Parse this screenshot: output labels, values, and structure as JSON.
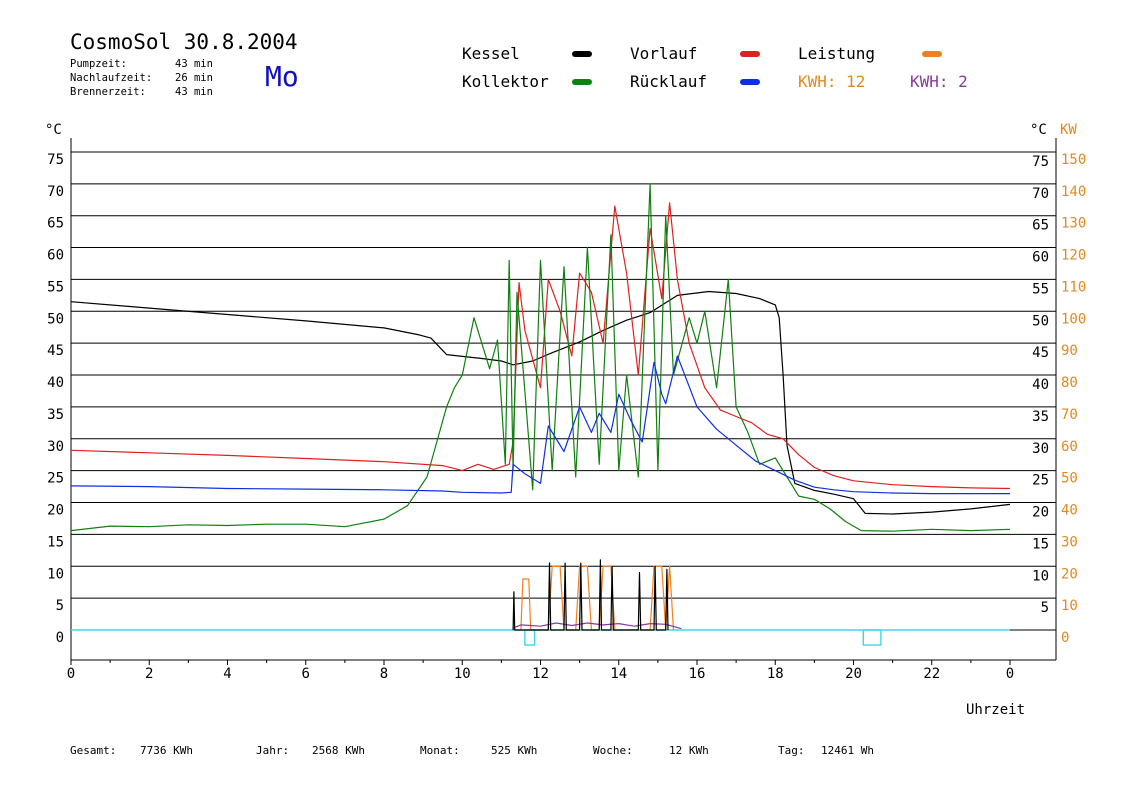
{
  "header": {
    "title": "CosmoSol 30.8.2004",
    "day": "Mo",
    "day_color": "#1010c0",
    "info": [
      {
        "label": "Pumpzeit:",
        "value": "43 min"
      },
      {
        "label": "Nachlaufzeit:",
        "value": "26 min"
      },
      {
        "label": "Brennerzeit:",
        "value": "43 min"
      }
    ]
  },
  "legend": {
    "kessel": {
      "label": "Kessel",
      "color": "#000000"
    },
    "vorlauf": {
      "label": "Vorlauf",
      "color": "#e02020"
    },
    "leistung": {
      "label": "Leistung",
      "color": "#f08020"
    },
    "kollektor": {
      "label": "Kollektor",
      "color": "#108010"
    },
    "ruecklauf": {
      "label": "Rücklauf",
      "color": "#1030e0"
    },
    "kwh_orange": {
      "label": "KWH: 12",
      "color": "#e08a20"
    },
    "kwh_purple": {
      "label": "KWH: 2",
      "color": "#8a3a9a"
    }
  },
  "axes": {
    "left_unit": "°C",
    "right_unit": "°C",
    "right_unit2": "KW",
    "x_label": "Uhrzeit"
  },
  "footer": {
    "gesamt_label": "Gesamt:",
    "gesamt_value": "7736 KWh",
    "jahr_label": "Jahr:",
    "jahr_value": "2568 KWh",
    "monat_label": "Monat:",
    "monat_value": "525 KWh",
    "woche_label": "Woche:",
    "woche_value": "12 KWh",
    "tag_label": "Tag:",
    "tag_value": "12461 Wh"
  },
  "chart_data": {
    "type": "line",
    "x_ticks": [
      "0",
      "2",
      "4",
      "6",
      "8",
      "10",
      "12",
      "14",
      "16",
      "18",
      "20",
      "22",
      "0"
    ],
    "y_ticks_left": [
      "75",
      "70",
      "65",
      "60",
      "55",
      "50",
      "45",
      "40",
      "35",
      "30",
      "25",
      "20",
      "15",
      "10",
      "5",
      "0"
    ],
    "y_ticks_right": [
      "75",
      "70",
      "65",
      "60",
      "55",
      "50",
      "45",
      "40",
      "35",
      "30",
      "25",
      "20",
      "15",
      "10",
      "5"
    ],
    "y_ticks_kw": [
      "150",
      "140",
      "130",
      "120",
      "110",
      "100",
      "90",
      "80",
      "70",
      "60",
      "50",
      "40",
      "30",
      "20",
      "10",
      "0"
    ],
    "xlim": [
      0,
      24
    ],
    "ylim": [
      0,
      75
    ],
    "grid": true,
    "series": [
      {
        "name": "Kessel",
        "color": "#000000",
        "x": [
          0,
          2,
          4,
          6,
          8,
          8.9,
          9.2,
          9.6,
          10.5,
          11,
          11.3,
          11.8,
          12.3,
          13,
          13.6,
          14.2,
          14.8,
          15.5,
          16.3,
          17,
          17.6,
          18,
          18.1,
          18.2,
          18.3,
          18.5,
          19,
          19.5,
          20,
          20.3,
          21,
          22,
          23,
          24
        ],
        "y": [
          51.5,
          50.5,
          49.5,
          48.5,
          47.4,
          46.3,
          45.8,
          43.2,
          42.6,
          42.2,
          41.6,
          42.2,
          43.5,
          45.2,
          47,
          48.6,
          49.8,
          52.5,
          53.1,
          52.8,
          52,
          51,
          49,
          40,
          29,
          23,
          21.9,
          21.3,
          20.6,
          18.3,
          18.2,
          18.5,
          19,
          19.7
        ]
      },
      {
        "name": "Vorlauf",
        "color": "#e02020",
        "x": [
          0,
          2,
          4,
          6,
          8,
          9.5,
          10,
          10.4,
          10.8,
          11.2,
          11.3,
          11.45,
          11.6,
          12,
          12.2,
          12.5,
          12.8,
          13,
          13.3,
          13.6,
          13.9,
          14.2,
          14.5,
          14.8,
          15.1,
          15.3,
          15.5,
          15.8,
          16.2,
          16.6,
          17,
          17.4,
          17.8,
          18.2,
          18.6,
          19,
          19.5,
          20,
          21,
          22,
          23,
          24
        ],
        "y": [
          28.2,
          27.8,
          27.4,
          26.9,
          26.4,
          25.8,
          25,
          26,
          25.2,
          26,
          29.5,
          54.5,
          47,
          38,
          55,
          50,
          43,
          56,
          53,
          45,
          66.5,
          56,
          40,
          63,
          52,
          67,
          55,
          45,
          38,
          34.5,
          33.5,
          32.5,
          30.7,
          30,
          27.5,
          25.5,
          24.2,
          23.4,
          22.8,
          22.5,
          22.3,
          22.2
        ]
      },
      {
        "name": "Kollektor",
        "color": "#108010",
        "x": [
          0,
          1,
          2,
          3,
          4,
          5,
          6,
          7,
          8,
          8.6,
          9.1,
          9.6,
          9.8,
          10,
          10.3,
          10.7,
          10.9,
          11.1,
          11.2,
          11.3,
          11.4,
          11.8,
          12,
          12.3,
          12.6,
          12.9,
          13.2,
          13.5,
          13.8,
          14,
          14.2,
          14.5,
          14.8,
          15,
          15.2,
          15.4,
          15.8,
          16,
          16.2,
          16.5,
          16.8,
          17,
          17.3,
          17.6,
          18,
          18.3,
          18.6,
          19,
          19.4,
          19.8,
          20.2,
          21,
          22,
          23,
          24
        ],
        "y": [
          15.6,
          16.3,
          16.2,
          16.5,
          16.4,
          16.6,
          16.6,
          16.2,
          17.4,
          19.5,
          24,
          35,
          38,
          40,
          49,
          41,
          45.5,
          26,
          58,
          25,
          53,
          22,
          58,
          25,
          57,
          24,
          60,
          26,
          62,
          25,
          40,
          24,
          70,
          25,
          65,
          40,
          49,
          45,
          50,
          38,
          55,
          35,
          31,
          26,
          27,
          24,
          21,
          20.5,
          19,
          17,
          15.6,
          15.5,
          15.8,
          15.6,
          15.8
        ]
      },
      {
        "name": "Rücklauf",
        "color": "#1030e0",
        "x": [
          0,
          2,
          4,
          6,
          8,
          9.5,
          10,
          11,
          11.25,
          11.3,
          11.6,
          12,
          12.2,
          12.6,
          13,
          13.3,
          13.5,
          13.8,
          14,
          14.3,
          14.6,
          14.9,
          15.1,
          15.2,
          15.5,
          16,
          16.5,
          17,
          17.5,
          18,
          18.5,
          19,
          19.5,
          20,
          21,
          22,
          23,
          24
        ],
        "y": [
          22.6,
          22.5,
          22.2,
          22.1,
          22,
          21.8,
          21.6,
          21.5,
          21.6,
          26,
          24.5,
          23,
          32,
          28,
          35,
          31,
          34,
          31,
          37,
          33,
          29.5,
          42,
          37,
          35.5,
          43,
          35,
          31.5,
          29,
          26.5,
          25,
          23.5,
          22.4,
          22,
          21.7,
          21.5,
          21.4,
          21.4,
          21.4
        ]
      },
      {
        "name": "Leistung",
        "color": "#f08020",
        "x": [
          11.5,
          11.55,
          11.7,
          11.75,
          12.2,
          12.3,
          12.5,
          12.6,
          12.9,
          13,
          13.2,
          13.3,
          13.5,
          13.6,
          13.8,
          13.9,
          14.8,
          14.9,
          15.1,
          15.2,
          15.3,
          15.4
        ],
        "y": [
          0,
          8,
          8,
          0,
          0,
          10,
          10,
          0,
          0,
          10,
          10,
          0,
          0,
          10,
          10,
          0,
          0,
          10,
          10,
          0,
          10,
          0
        ]
      },
      {
        "name": "KWH Tag",
        "color": "#8a3a9a",
        "x": [
          11.3,
          11.5,
          12,
          12.4,
          12.8,
          13.2,
          13.6,
          14,
          14.4,
          14.8,
          15.2,
          15.6
        ],
        "y": [
          0.3,
          0.8,
          0.6,
          1.1,
          0.7,
          1.1,
          0.8,
          1.0,
          0.6,
          1.0,
          0.9,
          0.2
        ]
      },
      {
        "name": "Brenner",
        "color": "#000000",
        "x": [
          11.3,
          11.32,
          11.34,
          12.2,
          12.23,
          12.26,
          12.6,
          12.63,
          12.66,
          13.0,
          13.03,
          13.06,
          13.5,
          13.53,
          13.56,
          13.8,
          13.83,
          13.86,
          14.5,
          14.53,
          14.56,
          14.9,
          14.93,
          14.96,
          15.2,
          15.23,
          15.26
        ],
        "y": [
          0,
          6,
          0,
          0,
          10.5,
          0,
          0,
          10.5,
          0,
          0,
          10.5,
          0,
          0,
          11,
          0,
          0,
          10,
          0,
          0,
          9,
          0,
          0,
          10,
          0,
          0,
          9.5,
          0
        ]
      }
    ],
    "pump_markers": [
      {
        "start": 11.6,
        "end": 11.85
      },
      {
        "start": 20.25,
        "end": 20.7
      }
    ],
    "pump_color": "#40d8e0"
  }
}
